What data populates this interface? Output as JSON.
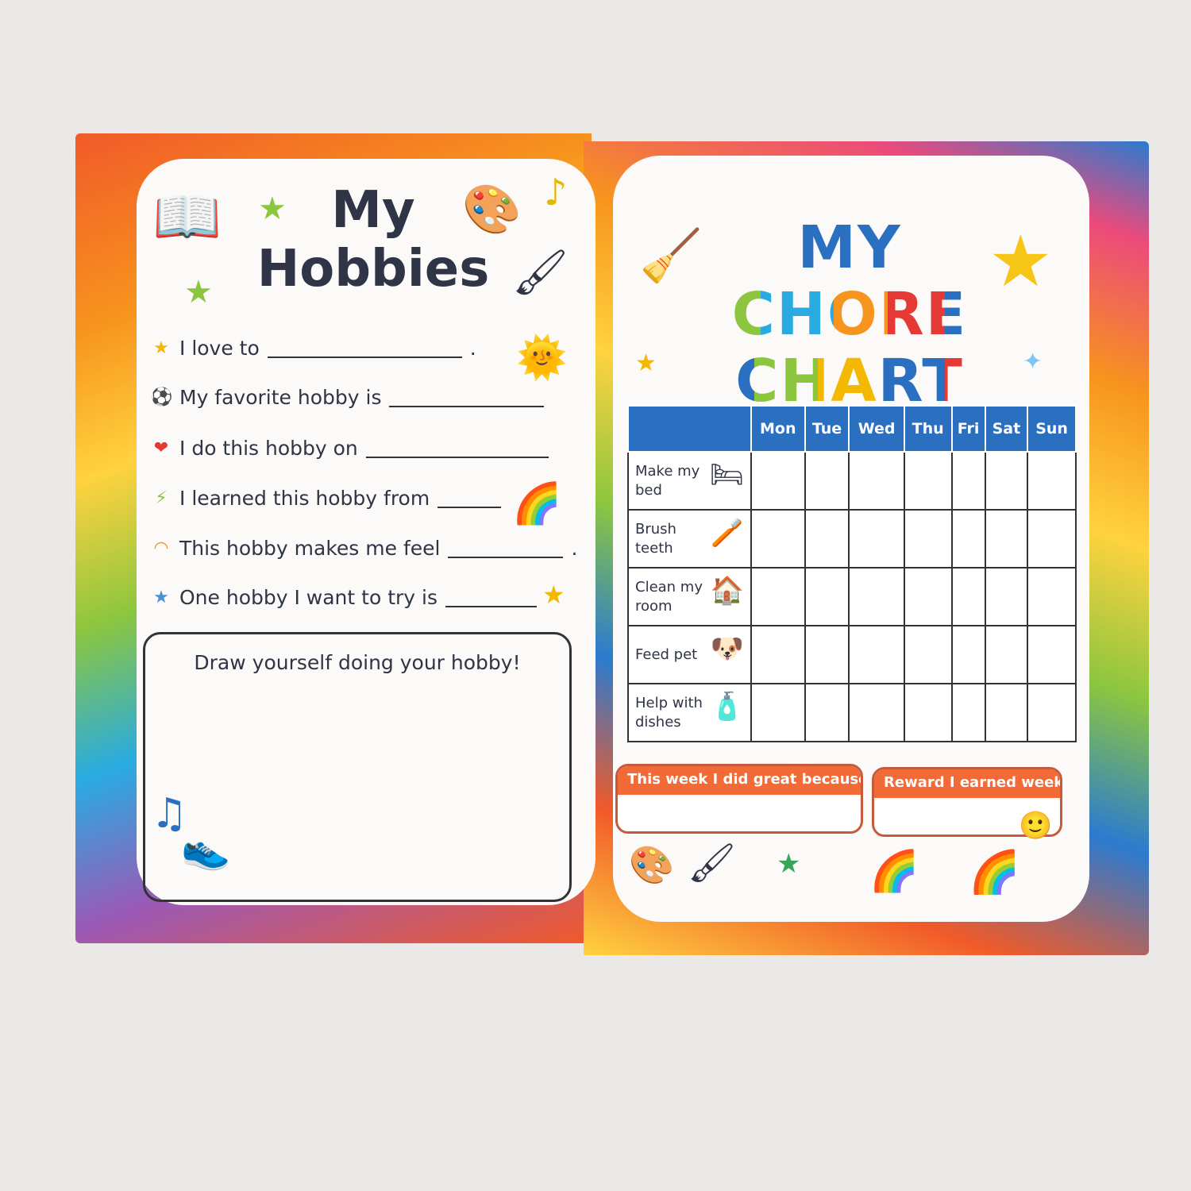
{
  "left_page": {
    "title_line1": "My",
    "title_line2": "Hobbies",
    "prompts": [
      {
        "icon": "star-icon",
        "text": "I love to",
        "end": "."
      },
      {
        "icon": "soccer-ball-icon",
        "text": "My favorite hobby is",
        "end": ""
      },
      {
        "icon": "heart-icon",
        "text": "I do this hobby on",
        "end": ""
      },
      {
        "icon": "lightning-icon",
        "text": "I learned this hobby from",
        "end": ""
      },
      {
        "icon": "rainbow-icon",
        "text": "This hobby makes me feel",
        "end": "."
      },
      {
        "icon": "star-icon",
        "text": "One hobby I want to try is",
        "end": ""
      }
    ],
    "draw_label": "Draw yourself doing your hobby!"
  },
  "right_page": {
    "title_line1": "MY",
    "title_line2": "CHORE",
    "title_line3": "CHART",
    "days": [
      "Mon",
      "Tue",
      "Wed",
      "Thu",
      "Fri",
      "Sat",
      "Sun"
    ],
    "chores": [
      {
        "label": "Make my bed",
        "icon": "bed-icon"
      },
      {
        "label": "Brush teeth",
        "icon": "toothbrush-icon"
      },
      {
        "label": "Clean my room",
        "icon": "house-icon"
      },
      {
        "label": "Feed pet",
        "icon": "dog-icon"
      },
      {
        "label": "Help with dishes",
        "icon": "dish-soap-icon"
      }
    ],
    "note1": "This week I did great because...",
    "note2": "Reward I earned week..."
  },
  "colors": {
    "table_header": "#2b6fc1",
    "note_header": "#f26a36",
    "title_text": "#2f3446"
  }
}
